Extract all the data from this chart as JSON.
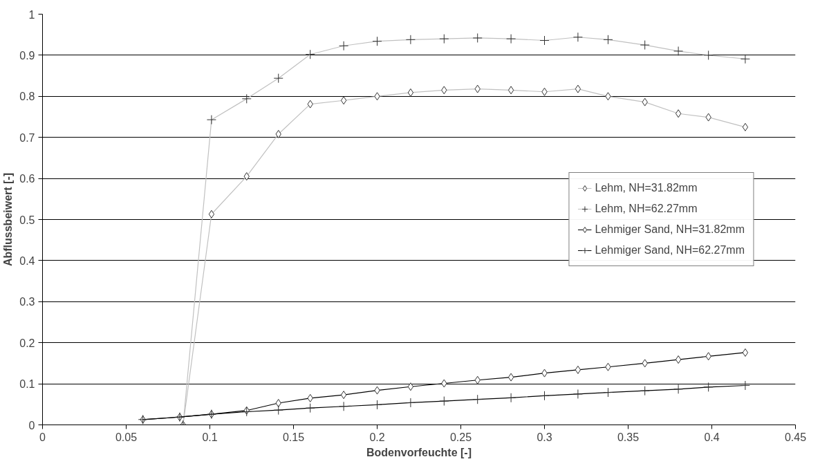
{
  "chart_data": {
    "type": "line",
    "xlabel": "Bodenvorfeuchte [-]",
    "ylabel": "Abflussbeiwert [-]",
    "xlim": [
      0,
      0.45
    ],
    "xticks": [
      0,
      0.05,
      0.1,
      0.15,
      0.2,
      0.25,
      0.3,
      0.35,
      0.4,
      0.45
    ],
    "ylim": [
      0,
      1
    ],
    "yticks": [
      0,
      0.1,
      0.2,
      0.3,
      0.4,
      0.5,
      0.6,
      0.7,
      0.8,
      0.9,
      1
    ],
    "grid": "y",
    "legend": "right",
    "series": [
      {
        "name": "Lehm, NH=31.82mm",
        "color": "#c0c0c0",
        "marker": "diamond",
        "x": [
          0.084,
          0.101,
          0.122,
          0.141,
          0.16,
          0.18,
          0.2,
          0.22,
          0.24,
          0.26,
          0.28,
          0.3,
          0.32,
          0.338,
          0.36,
          0.38,
          0.398,
          0.42
        ],
        "values": [
          0,
          0.513,
          0.605,
          0.708,
          0.781,
          0.79,
          0.8,
          0.809,
          0.815,
          0.818,
          0.815,
          0.811,
          0.818,
          0.8,
          0.786,
          0.758,
          0.749,
          0.725
        ]
      },
      {
        "name": "Lehm, NH=62.27mm",
        "color": "#c0c0c0",
        "marker": "cross",
        "x": [
          0.084,
          0.101,
          0.122,
          0.141,
          0.16,
          0.18,
          0.2,
          0.22,
          0.24,
          0.26,
          0.28,
          0.3,
          0.32,
          0.338,
          0.36,
          0.38,
          0.398,
          0.42
        ],
        "values": [
          0,
          0.743,
          0.794,
          0.844,
          0.902,
          0.923,
          0.934,
          0.938,
          0.94,
          0.942,
          0.94,
          0.936,
          0.944,
          0.938,
          0.925,
          0.91,
          0.9,
          0.891
        ]
      },
      {
        "name": "Lehmiger Sand, NH=31.82mm",
        "color": "#000000",
        "marker": "diamond",
        "x": [
          0.06,
          0.082,
          0.101,
          0.122,
          0.141,
          0.16,
          0.18,
          0.2,
          0.22,
          0.24,
          0.26,
          0.28,
          0.3,
          0.32,
          0.338,
          0.36,
          0.38,
          0.398,
          0.42
        ],
        "values": [
          0.013,
          0.019,
          0.026,
          0.035,
          0.053,
          0.065,
          0.073,
          0.084,
          0.093,
          0.101,
          0.109,
          0.116,
          0.126,
          0.134,
          0.141,
          0.15,
          0.159,
          0.167,
          0.176
        ]
      },
      {
        "name": "Lehmiger Sand, NH=62.27mm",
        "color": "#000000",
        "marker": "cross",
        "x": [
          0.06,
          0.082,
          0.101,
          0.122,
          0.141,
          0.16,
          0.18,
          0.2,
          0.22,
          0.24,
          0.26,
          0.28,
          0.3,
          0.32,
          0.338,
          0.36,
          0.38,
          0.398,
          0.42
        ],
        "values": [
          0.013,
          0.019,
          0.026,
          0.032,
          0.036,
          0.041,
          0.045,
          0.049,
          0.054,
          0.058,
          0.062,
          0.066,
          0.071,
          0.075,
          0.079,
          0.083,
          0.087,
          0.092,
          0.096
        ]
      }
    ]
  }
}
